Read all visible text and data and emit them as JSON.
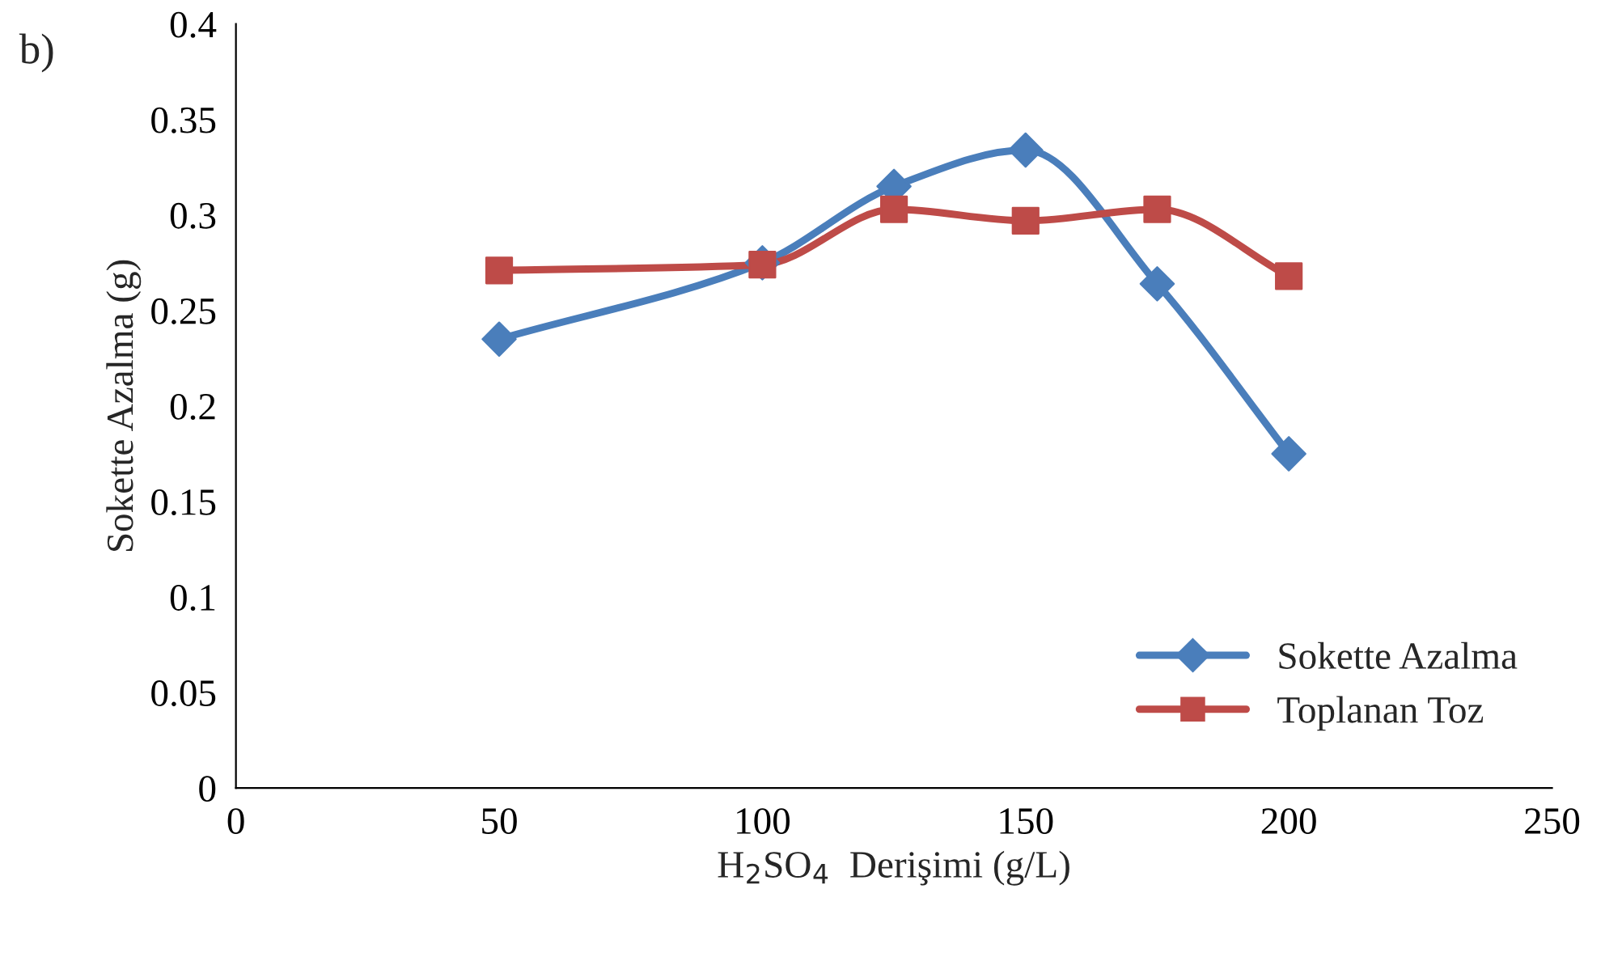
{
  "chart_data": {
    "type": "line",
    "xlabel": "H$_{2}$SO$_{4}$  Derişimi (g/L)",
    "ylabel": "Sokette Azalma (g)",
    "annotations": [
      "b)"
    ],
    "x": [
      50,
      100,
      125,
      150,
      175,
      200
    ],
    "series": [
      {
        "name": "Sokette Azalma",
        "color": "#4a7ebb",
        "marker": "diamond",
        "values": [
          0.235,
          0.275,
          0.315,
          0.334,
          0.264,
          0.175
        ]
      },
      {
        "name": "Toplanan Toz",
        "color": "#be4b48",
        "marker": "square",
        "values": [
          0.271,
          0.274,
          0.303,
          0.297,
          0.303,
          0.268
        ]
      }
    ],
    "xlim": [
      0,
      250
    ],
    "xticks": [
      0,
      50,
      100,
      150,
      200,
      250
    ],
    "ylim": [
      0,
      0.4
    ],
    "yticks": [
      0,
      0.05,
      0.1,
      0.15,
      0.2,
      0.25,
      0.3,
      0.35,
      0.4
    ],
    "grid": false,
    "legend": "bottom right",
    "line_style": "solid"
  }
}
